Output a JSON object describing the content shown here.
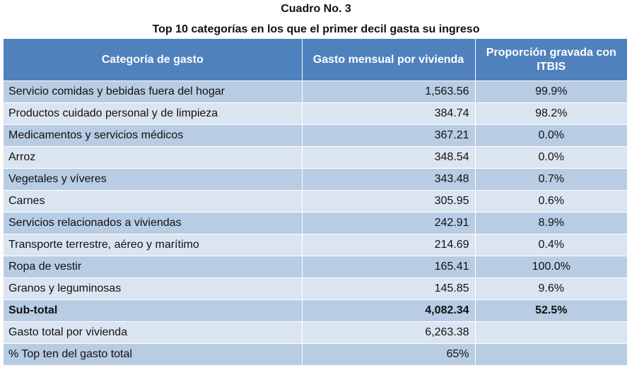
{
  "caption": {
    "number": "Cuadro No. 3",
    "title": "Top 10 categorías en los que el primer decil gasta su ingreso"
  },
  "table": {
    "headers": [
      "Categoría de gasto",
      "Gasto mensual por vivienda",
      "Proporción gravada con ITBIS"
    ],
    "rows": [
      {
        "category": "Servicio comidas y bebidas fuera del hogar",
        "spend": "1,563.56",
        "share": "99.9%"
      },
      {
        "category": "Productos cuidado personal y de limpieza",
        "spend": "384.74",
        "share": "98.2%"
      },
      {
        "category": "Medicamentos y servicios médicos",
        "spend": "367.21",
        "share": "0.0%"
      },
      {
        "category": "Arroz",
        "spend": "348.54",
        "share": "0.0%"
      },
      {
        "category": "Vegetales y víveres",
        "spend": "343.48",
        "share": "0.7%"
      },
      {
        "category": "Carnes",
        "spend": "305.95",
        "share": "0.6%"
      },
      {
        "category": "Servicios relacionados a viviendas",
        "spend": "242.91",
        "share": "8.9%"
      },
      {
        "category": "Transporte terrestre, aéreo y marítimo",
        "spend": "214.69",
        "share": "0.4%"
      },
      {
        "category": "Ropa de vestir",
        "spend": "165.41",
        "share": "100.0%"
      },
      {
        "category": "Granos y leguminosas",
        "spend": "145.85",
        "share": "9.6%"
      }
    ],
    "subtotal": {
      "category": "Sub-total",
      "spend": "4,082.34",
      "share": "52.5%"
    },
    "total": {
      "category": "Gasto total por vivienda",
      "spend": "6,263.38",
      "share": ""
    },
    "top_ten_pct": {
      "category": "% Top ten del gasto total",
      "spend": "65%",
      "share": ""
    }
  },
  "colors": {
    "header": "#4f81bd",
    "row_dark": "#b8cce4",
    "row_light": "#dbe5f1"
  }
}
